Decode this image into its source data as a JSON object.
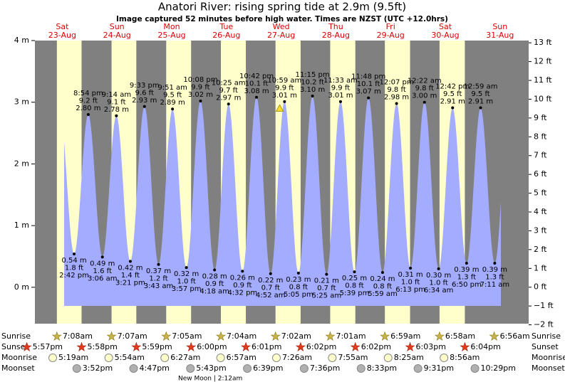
{
  "chart_data": {
    "type": "tide",
    "title": "Anatori River: rising  spring tide at 2.9m (9.5ft)",
    "subtitle": "Image captured 52 minutes before high water. Times are NZST (UTC +12.0hrs)",
    "days": [
      [
        "Sat",
        "23-Aug"
      ],
      [
        "Sun",
        "24-Aug"
      ],
      [
        "Mon",
        "25-Aug"
      ],
      [
        "Tue",
        "26-Aug"
      ],
      [
        "Wed",
        "27-Aug"
      ],
      [
        "Thu",
        "28-Aug"
      ],
      [
        "Fri",
        "29-Aug"
      ],
      [
        "Sat",
        "30-Aug"
      ],
      [
        "Sun",
        "31-Aug"
      ]
    ],
    "ylim": [
      -0.59,
      4
    ],
    "yticks": [
      {
        "value": 4,
        "label": "4 m"
      },
      {
        "value": 3,
        "label": "3 m"
      },
      {
        "value": 2,
        "label": "2 m"
      },
      {
        "value": 1,
        "label": "1 m"
      },
      {
        "value": 0,
        "label": "0 m"
      }
    ],
    "y2lim": [
      -1.94,
      13.12
    ],
    "y2ticks": [
      {
        "value": 13,
        "label": "13 ft"
      },
      {
        "value": 12,
        "label": "12 ft"
      },
      {
        "value": 11,
        "label": "11 ft"
      },
      {
        "value": 10,
        "label": "10 ft"
      },
      {
        "value": 9,
        "label": "9 ft"
      },
      {
        "value": 8,
        "label": "8 ft"
      },
      {
        "value": 7,
        "label": "7 ft"
      },
      {
        "value": 6,
        "label": "6 ft"
      },
      {
        "value": 5,
        "label": "5 ft"
      },
      {
        "value": 4,
        "label": "4 ft"
      },
      {
        "value": 3,
        "label": "3 ft"
      },
      {
        "value": 2,
        "label": "2 ft"
      },
      {
        "value": 1,
        "label": "1 ft"
      },
      {
        "value": 0,
        "label": "0 ft"
      },
      {
        "value": -1,
        "label": "−1 ft"
      },
      {
        "value": -2,
        "label": "−2 ft"
      }
    ],
    "color": "#a3acff",
    "times": [
      "2:42 pm",
      "8:54 pm",
      "3:06 am",
      "9:14 am",
      "3:21 pm",
      "9:33 pm",
      "3:43 am",
      "9:51 am",
      "3:57 pm",
      "10:08 pm",
      "4:18 am",
      "10:25 am",
      "4:32 pm",
      "10:42 pm",
      "4:52 am",
      "10:59 am",
      "5:05 pm",
      "11:15 pm",
      "5:25 am",
      "11:33 am",
      "5:39 pm",
      "11:48 pm",
      "5:59 am",
      "12:07 pm",
      "6:13 pm",
      "12:22 am",
      "6:34 am",
      "12:42 pm",
      "6:50 pm",
      "12:59 am",
      "7:11 am"
    ],
    "values": [
      0.54,
      2.8,
      0.49,
      2.78,
      0.42,
      2.93,
      0.37,
      2.89,
      0.32,
      3.02,
      0.28,
      2.97,
      0.26,
      3.08,
      0.22,
      3.01,
      0.23,
      3.1,
      0.21,
      3.01,
      0.25,
      3.07,
      0.24,
      2.98,
      0.31,
      3.0,
      0.3,
      2.91,
      0.39,
      2.91,
      0.39
    ],
    "value_labels": [
      "0.54 m",
      "2.80 m",
      "0.49 m",
      "2.78 m",
      "0.42 m",
      "2.93 m",
      "0.37 m",
      "2.89 m",
      "0.32 m",
      "3.02 m",
      "0.28 m",
      "2.97 m",
      "0.26 m",
      "3.08 m",
      "0.22 m",
      "3.01 m",
      "0.23 m",
      "3.10 m",
      "0.21 m",
      "3.01 m",
      "0.25 m",
      "3.07 m",
      "0.24 m",
      "2.98 m",
      "0.31 m",
      "3.00 m",
      "0.30 m",
      "2.91 m",
      "0.39 m",
      "2.91 m",
      "0.39 m"
    ],
    "ft_labels": [
      "1.8 ft",
      "9.2 ft",
      "1.6 ft",
      "9.1 ft",
      "1.4 ft",
      "9.6 ft",
      "1.2 ft",
      "9.5 ft",
      "1.0 ft",
      "9.9 ft",
      "0.9 ft",
      "9.7 ft",
      "0.9 ft",
      "10.1 ft",
      "0.7 ft",
      "9.9 ft",
      "0.8 ft",
      "10.2 ft",
      "0.7 ft",
      "9.9 ft",
      "0.8 ft",
      "10.1 ft",
      "0.8 ft",
      "9.8 ft",
      "1.0 ft",
      "9.8 ft",
      "1.0 ft",
      "9.5 ft",
      "1.3 ft",
      "9.5 ft",
      "1.3 ft"
    ],
    "current_height": 2.9,
    "almanac": [
      {
        "name": "Sunrise",
        "times": [
          "7:08am",
          "7:07am",
          "7:05am",
          "7:04am",
          "7:02am",
          "7:01am",
          "6:59am",
          "6:58am",
          "6:56am"
        ]
      },
      {
        "name": "Sunset",
        "times": [
          "5:57pm",
          "5:58pm",
          "5:59pm",
          "6:00pm",
          "6:01pm",
          "6:02pm",
          "6:02pm",
          "6:03pm",
          "6:04pm"
        ]
      },
      {
        "name": "Moonrise",
        "times": [
          "5:19am",
          "5:54am",
          "6:27am",
          "6:57am",
          "7:26am",
          "7:55am",
          "8:25am",
          "8:56am"
        ]
      },
      {
        "name": "Moonset",
        "times": [
          "3:52pm",
          "4:47pm",
          "5:43pm",
          "6:39pm",
          "7:36pm",
          "8:33pm",
          "9:31pm",
          "10:29pm"
        ]
      }
    ],
    "moon_phase": "New Moon | 2:12am"
  }
}
